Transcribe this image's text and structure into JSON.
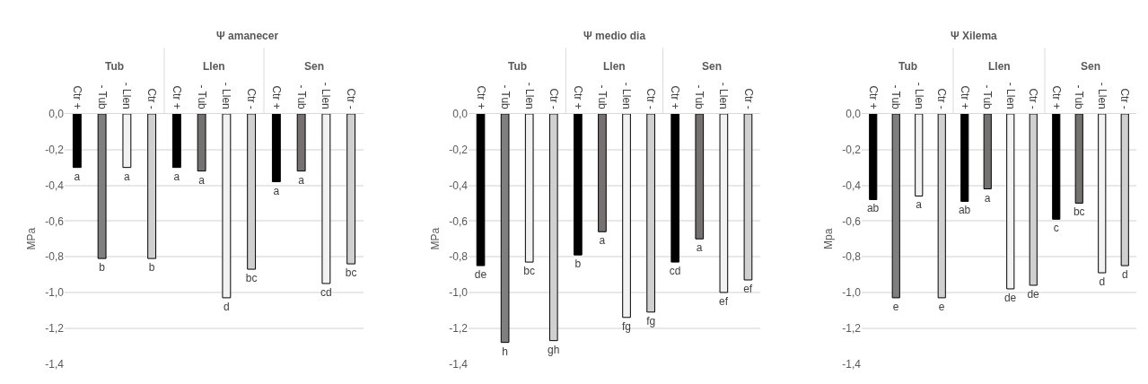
{
  "chart_data": [
    {
      "type": "bar",
      "title": "Ψ amanecer",
      "ylabel": "MPa",
      "categories": [
        "Ctr +",
        "- Tub",
        "- Llen",
        "Ctr -",
        "Ctr +",
        "- Tub",
        "- Llen",
        "Ctr -",
        "Ctr +",
        "- Tub",
        "- Llen",
        "Ctr -"
      ],
      "series": [
        {
          "colors": [
            "#000000",
            "#7f7f7f",
            "#f2f2f2",
            "#d0d0d0",
            "#000000",
            "#767171",
            "#f2f2f2",
            "#d0d0d0",
            "#000000",
            "#767171",
            "#f2f2f2",
            "#d0d0d0"
          ],
          "values": [
            -0.3,
            -0.81,
            -0.3,
            -0.81,
            -0.3,
            -0.32,
            -1.03,
            -0.87,
            -0.38,
            -0.32,
            -0.95,
            -0.84
          ],
          "value_labels": [
            "a",
            "b",
            "a",
            "b",
            "a",
            "a",
            "d",
            "bc",
            "a",
            "a",
            "cd",
            "bc"
          ]
        }
      ],
      "ylim": [
        -1.4,
        0
      ],
      "yticks": [
        {
          "value": 0,
          "label": "0,0"
        },
        {
          "value": -0.2,
          "label": "-0,2"
        },
        {
          "value": -0.4,
          "label": "-0,4"
        },
        {
          "value": -0.6,
          "label": "-0,6"
        },
        {
          "value": -0.8,
          "label": "-0,8"
        },
        {
          "value": -1.0,
          "label": "-1,0"
        },
        {
          "value": -1.2,
          "label": "-1,2"
        },
        {
          "value": -1.4,
          "label": "-1,4"
        }
      ],
      "grid": "y",
      "annotations": [
        "Tub",
        "Llen",
        "Sen"
      ]
    },
    {
      "type": "bar",
      "title": "Ψ medio dia",
      "ylabel": "MPa",
      "categories": [
        "Ctr +",
        "- Tub",
        "- Llen",
        "Ctr -",
        "Ctr +",
        "- Tub",
        "- Llen",
        "Ctr -",
        "Ctr +",
        "- Tub",
        "- Llen",
        "Ctr -"
      ],
      "series": [
        {
          "colors": [
            "#000000",
            "#7f7f7f",
            "#f2f2f2",
            "#d0d0d0",
            "#000000",
            "#767171",
            "#f2f2f2",
            "#d0d0d0",
            "#000000",
            "#767171",
            "#f2f2f2",
            "#d0d0d0"
          ],
          "values": [
            -0.85,
            -1.28,
            -0.83,
            -1.27,
            -0.79,
            -0.66,
            -1.14,
            -1.11,
            -0.83,
            -0.7,
            -1.0,
            -0.93
          ],
          "value_labels": [
            "de",
            "h",
            "bc",
            "gh",
            "b",
            "a",
            "fg",
            "fg",
            "cd",
            "a",
            "ef",
            "ef"
          ]
        }
      ],
      "ylim": [
        -1.4,
        0
      ],
      "yticks": [
        {
          "value": 0,
          "label": "0,0"
        },
        {
          "value": -0.2,
          "label": "-0,2"
        },
        {
          "value": -0.4,
          "label": "-0,4"
        },
        {
          "value": -0.6,
          "label": "-0,6"
        },
        {
          "value": -0.8,
          "label": "-0,8"
        },
        {
          "value": -1.0,
          "label": "-1,0"
        },
        {
          "value": -1.2,
          "label": "-1,2"
        },
        {
          "value": -1.4,
          "label": "-1,4"
        }
      ],
      "grid": "y",
      "annotations": [
        "Tub",
        "Llen",
        "Sen"
      ]
    },
    {
      "type": "bar",
      "title": "Ψ Xilema",
      "ylabel": "Mpa",
      "categories": [
        "Ctr +",
        "- Tub",
        "- Llen",
        "Ctr -",
        "Ctr +",
        "- Tub",
        "- Llen",
        "Ctr -",
        "Ctr +",
        "- Tub",
        "- Llen",
        "Ctr -"
      ],
      "series": [
        {
          "colors": [
            "#000000",
            "#7f7f7f",
            "#f2f2f2",
            "#d0d0d0",
            "#000000",
            "#767171",
            "#f2f2f2",
            "#d0d0d0",
            "#000000",
            "#767171",
            "#f2f2f2",
            "#d0d0d0"
          ],
          "values": [
            -0.48,
            -1.03,
            -0.46,
            -1.03,
            -0.49,
            -0.42,
            -0.98,
            -0.96,
            -0.59,
            -0.5,
            -0.89,
            -0.85
          ],
          "value_labels": [
            "ab",
            "e",
            "a",
            "e",
            "ab",
            "a",
            "de",
            "de",
            "c",
            "bc",
            "d",
            "d"
          ]
        }
      ],
      "ylim": [
        -1.4,
        0
      ],
      "yticks": [
        {
          "value": 0,
          "label": "0,0"
        },
        {
          "value": -0.2,
          "label": "-0,2"
        },
        {
          "value": -0.4,
          "label": "-0,4"
        },
        {
          "value": -0.6,
          "label": "-0,6"
        },
        {
          "value": -0.8,
          "label": "-0,8"
        },
        {
          "value": -1.0,
          "label": "-1,0"
        },
        {
          "value": -1.2,
          "label": "-1,2"
        },
        {
          "value": -1.4,
          "label": "-1,4"
        }
      ],
      "grid": "y",
      "annotations": [
        "Tub",
        "Llen",
        "Sen"
      ]
    }
  ]
}
